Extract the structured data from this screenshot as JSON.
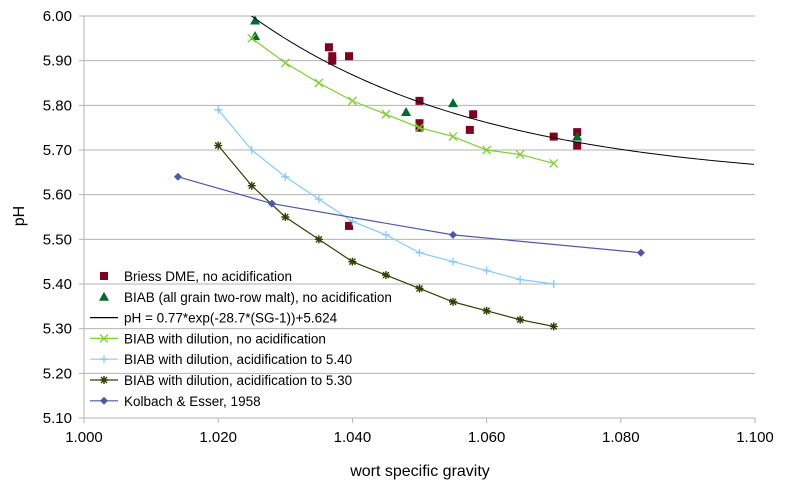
{
  "chart_data": {
    "type": "scatter",
    "xlabel": "wort specific gravity",
    "ylabel": "pH",
    "xlim": [
      1.0,
      1.1
    ],
    "ylim": [
      5.1,
      6.0
    ],
    "x_ticks": [
      "1.000",
      "1.020",
      "1.040",
      "1.060",
      "1.080",
      "1.100"
    ],
    "y_ticks": [
      "5.10",
      "5.20",
      "5.30",
      "5.40",
      "5.50",
      "5.60",
      "5.70",
      "5.80",
      "5.90",
      "6.00"
    ],
    "x_tick_values": [
      1.0,
      1.02,
      1.04,
      1.06,
      1.08,
      1.1
    ],
    "y_tick_values": [
      5.1,
      5.2,
      5.3,
      5.4,
      5.5,
      5.6,
      5.7,
      5.8,
      5.9,
      6.0
    ],
    "grid": "horizontal",
    "legend_position": "bottom-left",
    "series": [
      {
        "name": "Briess DME, no acidification",
        "marker": "square",
        "line": false,
        "color": "#7f0022",
        "points": [
          [
            1.0365,
            5.93
          ],
          [
            1.037,
            5.91
          ],
          [
            1.037,
            5.9
          ],
          [
            1.0395,
            5.91
          ],
          [
            1.0395,
            5.53
          ],
          [
            1.05,
            5.81
          ],
          [
            1.05,
            5.76
          ],
          [
            1.05,
            5.75
          ],
          [
            1.0575,
            5.745
          ],
          [
            1.058,
            5.78
          ],
          [
            1.07,
            5.73
          ],
          [
            1.0735,
            5.74
          ],
          [
            1.0735,
            5.71
          ]
        ]
      },
      {
        "name": "BIAB (all grain two-row malt), no acidification",
        "marker": "triangle",
        "line": false,
        "color": "#006b2c",
        "points": [
          [
            1.0255,
            5.99
          ],
          [
            1.0255,
            5.955
          ],
          [
            1.048,
            5.785
          ],
          [
            1.055,
            5.805
          ],
          [
            1.0735,
            5.73
          ]
        ]
      },
      {
        "name": "pH = 0.77*exp(-28.7*(SG-1))+5.624",
        "marker": "none",
        "line": true,
        "color": "#000000",
        "formula": {
          "a": 0.77,
          "b": -28.7,
          "c": 5.624
        }
      },
      {
        "name": "BIAB with dilution, no acidification",
        "marker": "x",
        "line": true,
        "color": "#7ed02d",
        "points": [
          [
            1.025,
            5.95
          ],
          [
            1.03,
            5.895
          ],
          [
            1.035,
            5.85
          ],
          [
            1.04,
            5.81
          ],
          [
            1.045,
            5.78
          ],
          [
            1.05,
            5.75
          ],
          [
            1.055,
            5.73
          ],
          [
            1.06,
            5.7
          ],
          [
            1.065,
            5.69
          ],
          [
            1.07,
            5.67
          ]
        ]
      },
      {
        "name": "BIAB with dilution, acidification to 5.40",
        "marker": "plus",
        "line": true,
        "color": "#83caff",
        "points": [
          [
            1.02,
            5.79
          ],
          [
            1.025,
            5.7
          ],
          [
            1.03,
            5.64
          ],
          [
            1.035,
            5.59
          ],
          [
            1.04,
            5.54
          ],
          [
            1.045,
            5.51
          ],
          [
            1.05,
            5.47
          ],
          [
            1.055,
            5.45
          ],
          [
            1.06,
            5.43
          ],
          [
            1.065,
            5.41
          ],
          [
            1.07,
            5.4
          ]
        ]
      },
      {
        "name": "BIAB with dilution, acidification to 5.30",
        "marker": "star",
        "line": true,
        "color": "#314004",
        "points": [
          [
            1.02,
            5.71
          ],
          [
            1.025,
            5.62
          ],
          [
            1.03,
            5.55
          ],
          [
            1.035,
            5.5
          ],
          [
            1.04,
            5.45
          ],
          [
            1.045,
            5.42
          ],
          [
            1.05,
            5.39
          ],
          [
            1.055,
            5.36
          ],
          [
            1.06,
            5.34
          ],
          [
            1.065,
            5.32
          ],
          [
            1.07,
            5.305
          ]
        ]
      },
      {
        "name": "Kolbach & Esser, 1958",
        "marker": "diamond",
        "line": true,
        "color": "#4f58a8",
        "points": [
          [
            1.014,
            5.64
          ],
          [
            1.028,
            5.58
          ],
          [
            1.055,
            5.51
          ],
          [
            1.083,
            5.47
          ]
        ]
      }
    ]
  }
}
